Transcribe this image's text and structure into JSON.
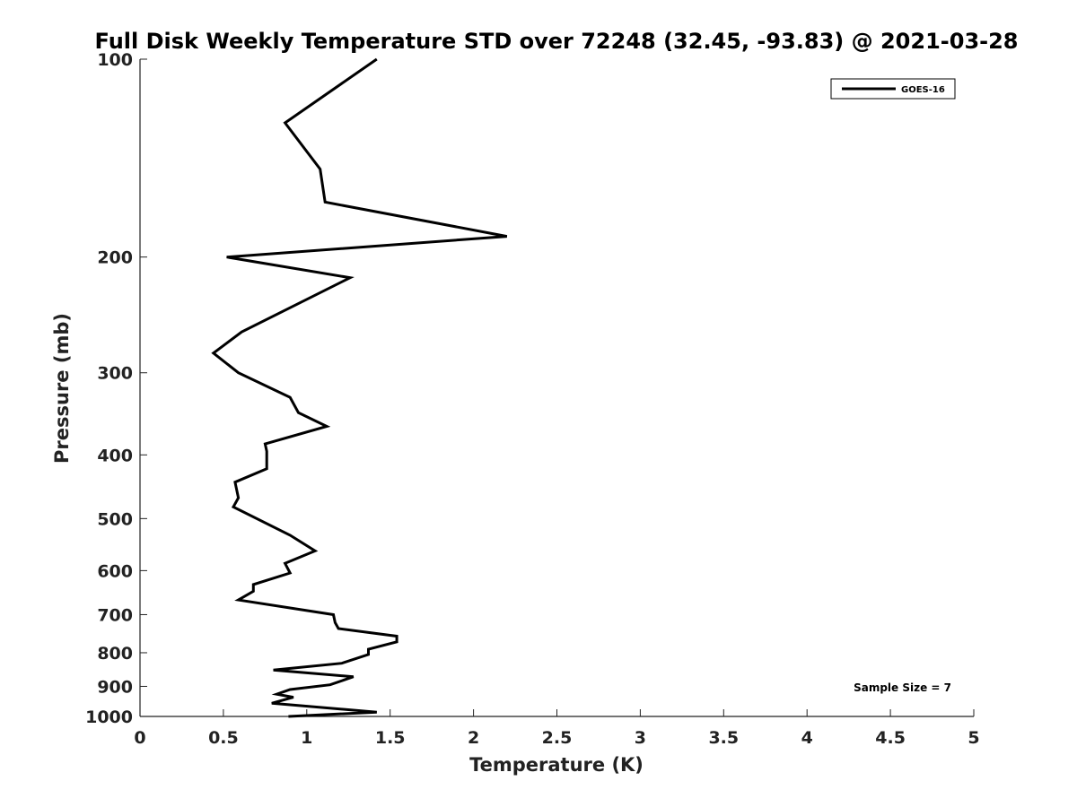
{
  "chart_data": {
    "type": "line",
    "title": "Full Disk Weekly Temperature STD over 72248 (32.45, -93.83) @ 2021-03-28",
    "xlabel": "Temperature (K)",
    "ylabel": "Pressure (mb)",
    "xlim": [
      0,
      5
    ],
    "ylim": [
      1000,
      100
    ],
    "y_scale": "log",
    "y_reversed": true,
    "x_ticks": [
      0,
      0.5,
      1,
      1.5,
      2,
      2.5,
      3,
      3.5,
      4,
      4.5,
      5
    ],
    "x_tick_labels": [
      "0",
      "0.5",
      "1",
      "1.5",
      "2",
      "2.5",
      "3",
      "3.5",
      "4",
      "4.5",
      "5"
    ],
    "y_ticks": [
      100,
      200,
      300,
      400,
      500,
      600,
      700,
      800,
      900,
      1000
    ],
    "y_tick_labels": [
      "100",
      "200",
      "300",
      "400",
      "500",
      "600",
      "700",
      "800",
      "900",
      "1000"
    ],
    "grid": false,
    "legend": {
      "placement": "top-right",
      "entries": [
        "GOES-16"
      ]
    },
    "annotations": [
      "Sample Size = 7"
    ],
    "series": [
      {
        "name": "GOES-16",
        "color": "#000000",
        "points": [
          [
            1.42,
            100
          ],
          [
            0.87,
            125
          ],
          [
            1.08,
            147
          ],
          [
            1.11,
            165
          ],
          [
            2.2,
            186
          ],
          [
            0.52,
            200
          ],
          [
            1.26,
            215
          ],
          [
            0.61,
            260
          ],
          [
            0.44,
            280
          ],
          [
            0.59,
            300
          ],
          [
            0.9,
            327
          ],
          [
            0.95,
            345
          ],
          [
            1.12,
            362
          ],
          [
            0.75,
            385
          ],
          [
            0.76,
            395
          ],
          [
            0.76,
            420
          ],
          [
            0.57,
            440
          ],
          [
            0.59,
            465
          ],
          [
            0.56,
            480
          ],
          [
            0.9,
            530
          ],
          [
            1.05,
            560
          ],
          [
            0.87,
            585
          ],
          [
            0.9,
            605
          ],
          [
            0.68,
            630
          ],
          [
            0.68,
            645
          ],
          [
            0.59,
            665
          ],
          [
            1.16,
            700
          ],
          [
            1.17,
            720
          ],
          [
            1.19,
            735
          ],
          [
            1.54,
            755
          ],
          [
            1.54,
            770
          ],
          [
            1.37,
            790
          ],
          [
            1.37,
            805
          ],
          [
            1.21,
            830
          ],
          [
            0.8,
            850
          ],
          [
            1.28,
            870
          ],
          [
            1.14,
            895
          ],
          [
            0.9,
            910
          ],
          [
            0.82,
            925
          ],
          [
            0.92,
            935
          ],
          [
            0.79,
            955
          ],
          [
            1.42,
            985
          ],
          [
            0.89,
            1000
          ]
        ]
      }
    ]
  }
}
